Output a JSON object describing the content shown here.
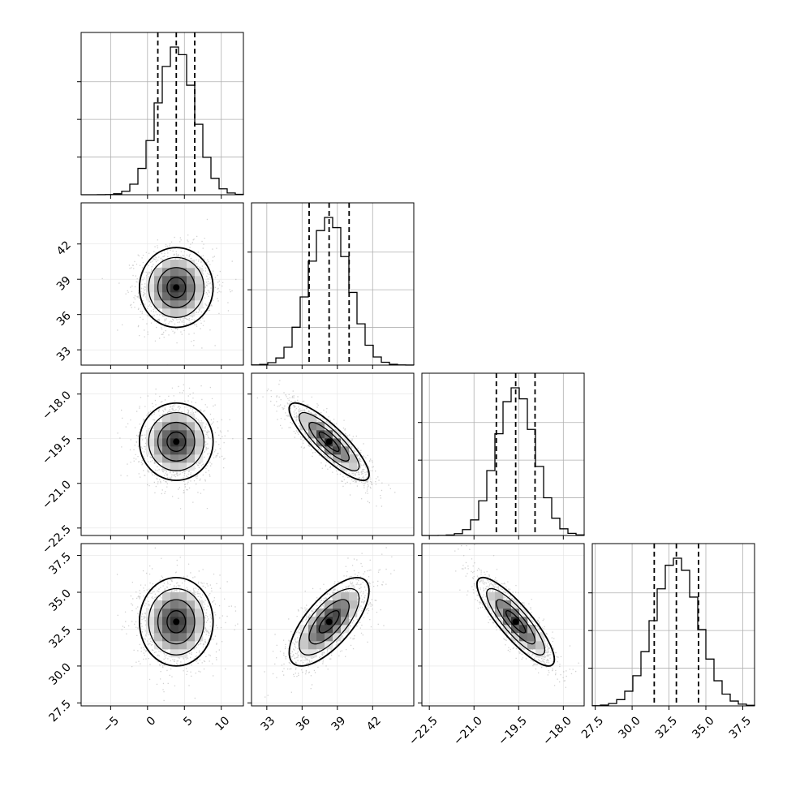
{
  "chart_data": {
    "type": "corner",
    "title": "",
    "parameters": [
      {
        "label": "",
        "range": [
          -9,
          13
        ],
        "ticks": [
          -5,
          0,
          5,
          10
        ],
        "tick_labels": [
          "−5",
          "0",
          "5",
          "10"
        ],
        "quantiles": [
          1.4,
          3.9,
          6.4
        ],
        "mean": 3.9,
        "sd": 2.5
      },
      {
        "label": "",
        "range": [
          31.7,
          45.5
        ],
        "ticks": [
          33,
          36,
          39,
          42
        ],
        "tick_labels": [
          "33",
          "36",
          "39",
          "42"
        ],
        "quantiles": [
          36.6,
          38.3,
          40.0
        ],
        "mean": 38.3,
        "sd": 1.7
      },
      {
        "label": "",
        "range": [
          -22.75,
          -17.3
        ],
        "ticks": [
          -22.5,
          -21.0,
          -19.5,
          -18.0
        ],
        "tick_labels": [
          "−22.5",
          "−21.0",
          "−19.5",
          "−18.0"
        ],
        "quantiles": [
          -20.25,
          -19.6,
          -18.95
        ],
        "mean": -19.6,
        "sd": 0.65
      },
      {
        "label": "",
        "range": [
          27.3,
          38.3
        ],
        "ticks": [
          27.5,
          30.0,
          32.5,
          35.0,
          37.5
        ],
        "tick_labels": [
          "27.5",
          "30.0",
          "32.5",
          "35.0",
          "37.5"
        ],
        "quantiles": [
          31.5,
          33.0,
          34.5
        ],
        "mean": 33.0,
        "sd": 1.5
      }
    ],
    "correlations": [
      [
        1,
        0,
        0,
        0
      ],
      [
        0,
        1,
        -0.85,
        0.7
      ],
      [
        0,
        -0.85,
        1,
        -0.85
      ],
      [
        0,
        0.7,
        -0.85,
        1
      ]
    ],
    "histogram_bins": 20,
    "contour_levels": [
      0.118,
      0.393,
      0.675,
      0.864
    ],
    "show_quantile_lines": true,
    "grid": true,
    "legend": "none"
  }
}
